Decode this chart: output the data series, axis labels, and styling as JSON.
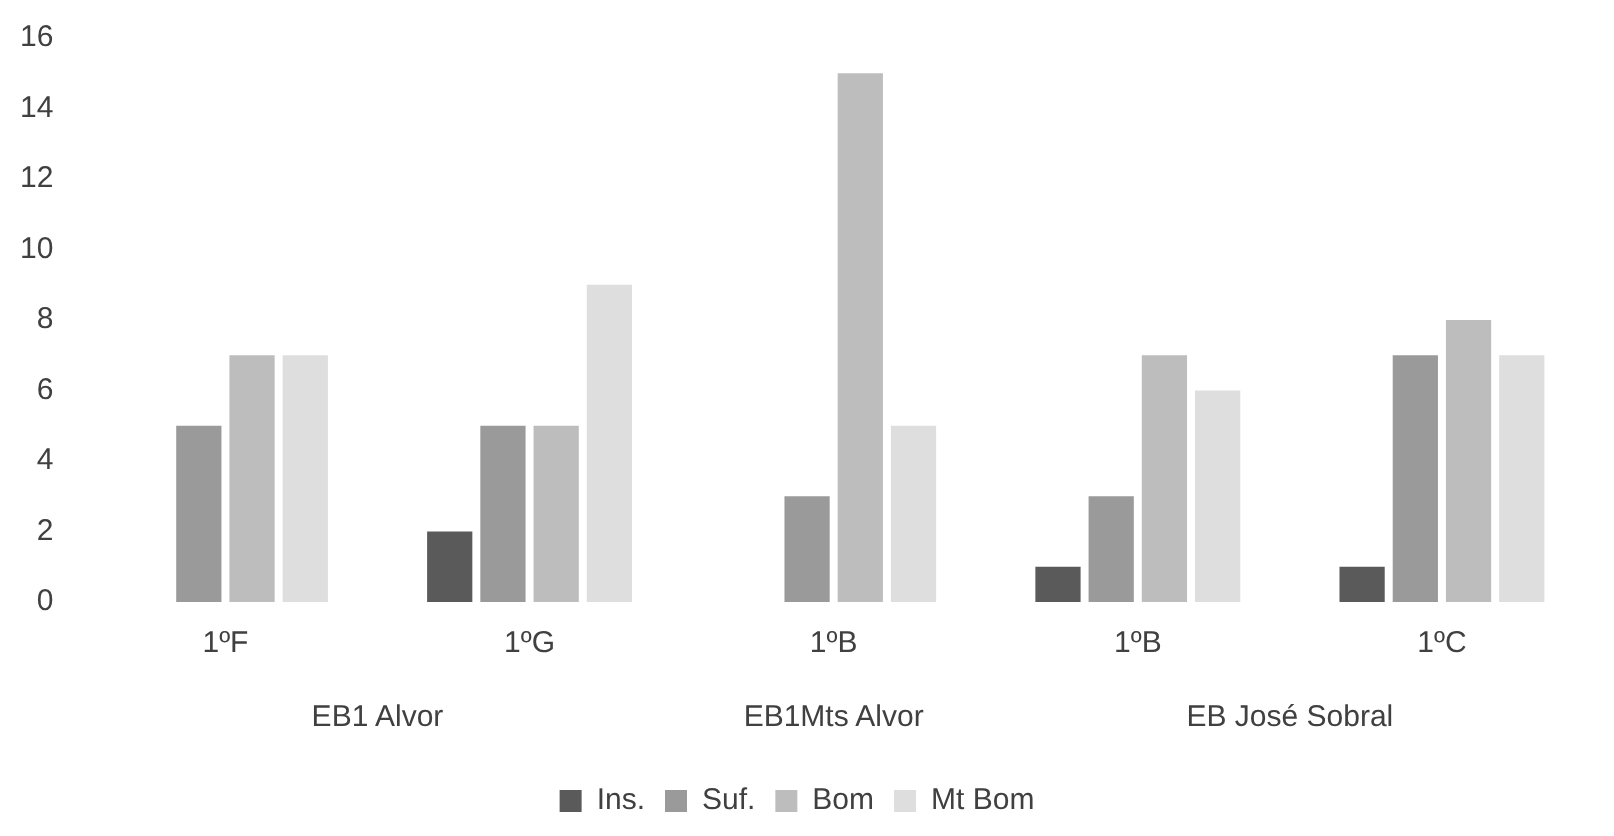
{
  "chart_data": {
    "type": "bar",
    "categories": [
      "1ºF",
      "1ºG",
      "1ºB",
      "1ºB",
      "1ºC"
    ],
    "series": [
      {
        "name": "Ins.",
        "color": "#5a5a5a",
        "values": [
          0,
          2,
          0,
          1,
          1
        ]
      },
      {
        "name": "Suf.",
        "color": "#9a9a9a",
        "values": [
          5,
          5,
          3,
          3,
          7
        ]
      },
      {
        "name": "Bom",
        "color": "#bdbdbd",
        "values": [
          7,
          5,
          15,
          7,
          8
        ]
      },
      {
        "name": "Mt Bom",
        "color": "#dedede",
        "values": [
          7,
          9,
          5,
          6,
          7
        ]
      }
    ],
    "ylim": [
      0,
      16
    ],
    "yticks": [
      0,
      2,
      4,
      6,
      8,
      10,
      12,
      14,
      16
    ],
    "grid": false,
    "legend": "bottom",
    "annotations": [
      "EB1 Alvor",
      "EB1Mts Alvor",
      "EB José Sobral"
    ]
  }
}
